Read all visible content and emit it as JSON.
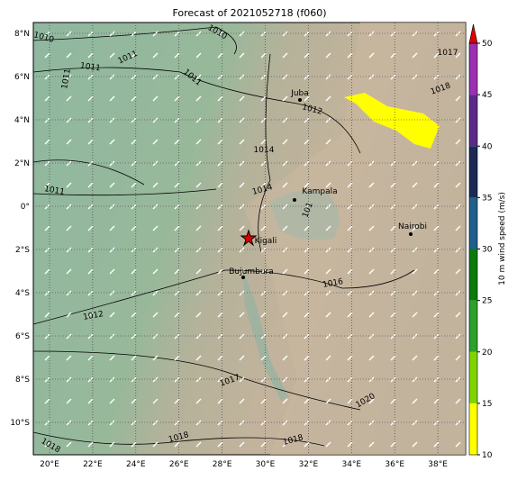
{
  "title": "Forecast of 2021052718 (f060)",
  "lon_labels": [
    "20°E",
    "22°E",
    "24°E",
    "26°E",
    "28°E",
    "30°E",
    "32°E",
    "34°E",
    "36°E",
    "38°E"
  ],
  "lat_labels": [
    "8°N",
    "6°N",
    "4°N",
    "2°N",
    "0°",
    "2°S",
    "4°S",
    "6°S",
    "8°S",
    "10°S"
  ],
  "cities": [
    "Juba",
    "Kampala",
    "Kigali",
    "Bujumbura",
    "Nairobi"
  ],
  "isobar_labels": [
    "1010",
    "1011",
    "1011",
    "1010",
    "1011",
    "1011",
    "1012",
    "1014",
    "1014",
    "1011",
    "101",
    "1016",
    "1012",
    "1017",
    "1020",
    "1018",
    "1018",
    "1018",
    "1017",
    "1018"
  ],
  "colorbar": {
    "label": "10 m wind speed (m/s)",
    "ticks": [
      "10",
      "15",
      "20",
      "25",
      "30",
      "35",
      "40",
      "45",
      "50"
    ],
    "colors": [
      "#ffff00",
      "#7fd400",
      "#2ca02c",
      "#0a7a0a",
      "#1f5f8a",
      "#1b2a55",
      "#5a2a8a",
      "#9b30b0"
    ],
    "extend_color": "#e00000"
  }
}
